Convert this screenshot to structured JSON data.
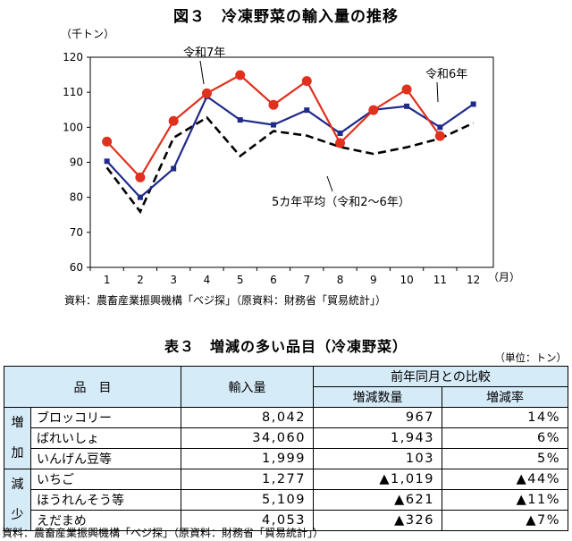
{
  "figure_title": "図３　冷凍野菜の輸入量の推移",
  "chart_data": {
    "type": "line",
    "yunit": "（千トン）",
    "xunit": "（月）",
    "ylim": [
      60,
      120
    ],
    "yticks": [
      60,
      70,
      80,
      90,
      100,
      110,
      120
    ],
    "x": [
      1,
      2,
      3,
      4,
      5,
      6,
      7,
      8,
      9,
      10,
      11,
      12
    ],
    "series": [
      {
        "name": "令和7年",
        "color": "#e0301e",
        "style": "line-circle",
        "values": [
          95.9,
          85.7,
          101.8,
          109.7,
          114.9,
          106.4,
          113.2,
          95.5,
          104.9,
          110.8,
          97.5,
          null
        ]
      },
      {
        "name": "令和6年",
        "color": "#1f2a8a",
        "style": "line-square",
        "values": [
          90.3,
          80.0,
          88.2,
          108.8,
          102.1,
          100.7,
          104.9,
          98.3,
          105.0,
          106.0,
          100.0,
          106.6
        ]
      },
      {
        "name": "5カ年平均（令和2～6年）",
        "color": "#000000",
        "style": "dashed",
        "values": [
          88.5,
          75.9,
          97.0,
          102.8,
          91.8,
          98.9,
          97.6,
          94.4,
          92.4,
          94.3,
          96.8,
          101.2
        ]
      }
    ]
  },
  "chart_source": "資料：農畜産業振興機構「ベジ探」（原資料：財務省「貿易統計」）",
  "table_title": "表３　増減の多い品目（冷凍野菜）",
  "table_unit": "（単位：トン）",
  "table": {
    "headers": {
      "item": "品　目",
      "volume": "輸入量",
      "compare": "前年同月との比較",
      "change_qty": "増減数量",
      "change_rate": "増減率"
    },
    "groups": [
      {
        "label_top": "増",
        "label_bottom": "加",
        "rows": [
          {
            "name": "ブロッコリー",
            "volume": "8,042",
            "change_qty": "967",
            "change_rate": "14%"
          },
          {
            "name": "ばれいしょ",
            "volume": "34,060",
            "change_qty": "1,943",
            "change_rate": "6%"
          },
          {
            "name": "いんげん豆等",
            "volume": "1,999",
            "change_qty": "103",
            "change_rate": "5%"
          }
        ]
      },
      {
        "label_top": "減",
        "label_bottom": "少",
        "rows": [
          {
            "name": "いちご",
            "volume": "1,277",
            "change_qty": "▲1,019",
            "change_rate": "▲44%"
          },
          {
            "name": "ほうれんそう等",
            "volume": "5,109",
            "change_qty": "▲621",
            "change_rate": "▲11%"
          },
          {
            "name": "えだまめ",
            "volume": "4,053",
            "change_qty": "▲326",
            "change_rate": "▲7%"
          }
        ]
      }
    ]
  },
  "table_source": "資料：農畜産業振興機構「ベジ探」（原資料：財務省「貿易統計」）"
}
